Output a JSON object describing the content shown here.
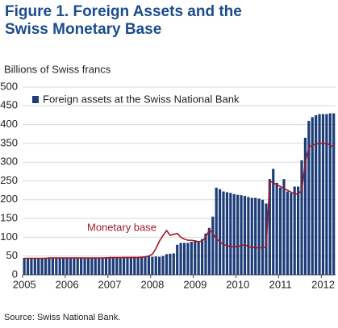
{
  "chart_data": {
    "type": "bar",
    "title": "Figure 1. Foreign Assets and the Swiss Monetary Base",
    "ylabel": "Billions of Swiss francs",
    "source": "Source: Swiss National Bank.",
    "categories": [
      "2005",
      null,
      null,
      null,
      null,
      null,
      null,
      null,
      null,
      null,
      null,
      null,
      "2006",
      null,
      null,
      null,
      null,
      null,
      null,
      null,
      null,
      null,
      null,
      null,
      "2007",
      null,
      null,
      null,
      null,
      null,
      null,
      null,
      null,
      null,
      null,
      null,
      "2008",
      null,
      null,
      null,
      null,
      null,
      null,
      null,
      null,
      null,
      null,
      null,
      "2009",
      null,
      null,
      null,
      null,
      null,
      null,
      null,
      null,
      null,
      null,
      null,
      "2010",
      null,
      null,
      null,
      null,
      null,
      null,
      null,
      null,
      null,
      null,
      null,
      "2011",
      null,
      null,
      null,
      null,
      null,
      null,
      null,
      null,
      null,
      null,
      null,
      "2012",
      null,
      null,
      null
    ],
    "series": [
      {
        "name": "Foreign assets at the Swiss National Bank",
        "type": "bar",
        "color": "#1d3d78",
        "values": [
          45,
          45,
          45,
          45,
          44,
          44,
          45,
          45,
          45,
          45,
          45,
          45,
          45,
          45,
          45,
          45,
          46,
          46,
          46,
          46,
          46,
          46,
          46,
          47,
          47,
          47,
          47,
          47,
          48,
          48,
          48,
          48,
          48,
          48,
          49,
          49,
          48,
          49,
          48,
          50,
          55,
          56,
          57,
          80,
          85,
          85,
          85,
          88,
          92,
          90,
          95,
          110,
          125,
          155,
          232,
          228,
          222,
          220,
          218,
          215,
          213,
          212,
          210,
          207,
          205,
          205,
          203,
          200,
          190,
          255,
          282,
          245,
          232,
          255,
          222,
          218,
          235,
          235,
          305,
          365,
          410,
          420,
          425,
          428,
          428,
          428,
          430,
          430
        ]
      },
      {
        "name": "Monetary base",
        "type": "line",
        "color": "#a3182b",
        "values": [
          44,
          44,
          44,
          44,
          44,
          44,
          44,
          45,
          45,
          45,
          45,
          45,
          45,
          45,
          45,
          45,
          45,
          45,
          45,
          45,
          45,
          45,
          45,
          45,
          46,
          46,
          46,
          46,
          46,
          46,
          46,
          46,
          46,
          47,
          48,
          50,
          55,
          70,
          90,
          105,
          118,
          105,
          108,
          110,
          100,
          95,
          92,
          92,
          90,
          88,
          90,
          100,
          120,
          110,
          95,
          88,
          80,
          78,
          75,
          75,
          75,
          78,
          80,
          75,
          73,
          72,
          72,
          72,
          75,
          250,
          245,
          240,
          235,
          230,
          225,
          220,
          215,
          215,
          225,
          300,
          340,
          345,
          348,
          350,
          350,
          350,
          345,
          340
        ]
      }
    ],
    "ylim": [
      0,
      500
    ],
    "yticks": [
      0,
      50,
      100,
      150,
      200,
      250,
      300,
      350,
      400,
      450,
      500
    ],
    "grid": true
  }
}
